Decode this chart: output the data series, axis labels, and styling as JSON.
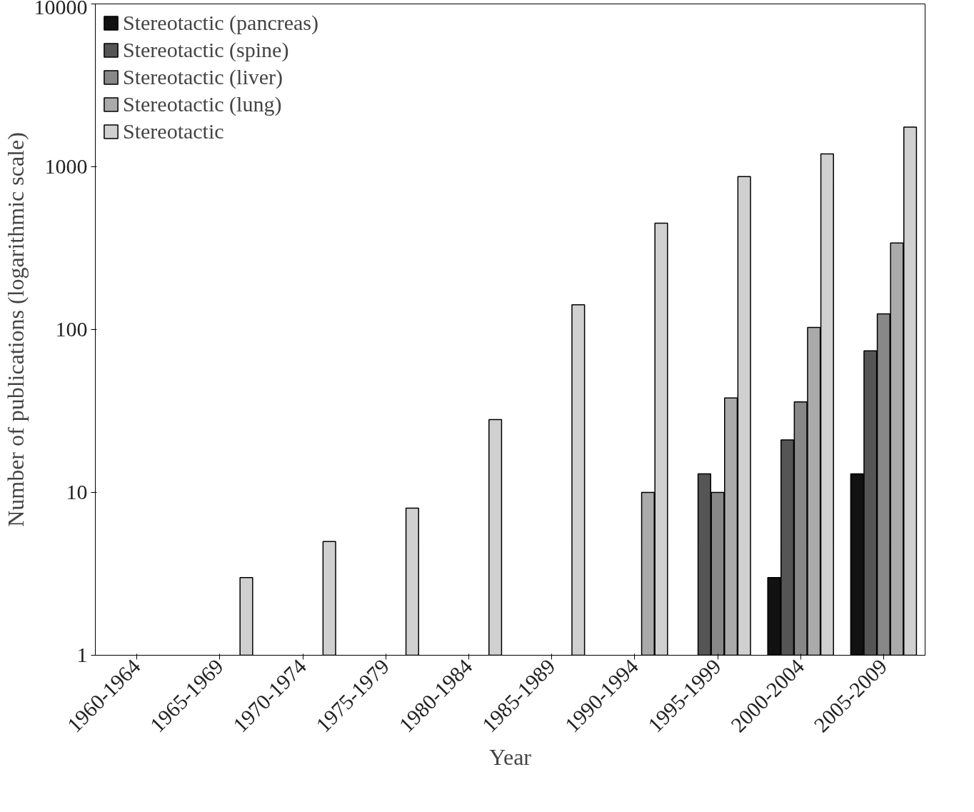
{
  "chart_data": {
    "type": "bar",
    "xlabel": "Year",
    "ylabel": "Number of publications (logarithmic scale)",
    "categories": [
      "1960-1964",
      "1965-1969",
      "1970-1974",
      "1975-1979",
      "1980-1984",
      "1985-1989",
      "1990-1994",
      "1995-1999",
      "2000-2004",
      "2005-2009"
    ],
    "series": [
      {
        "name": "Stereotactic (pancreas)",
        "color": "#111111",
        "values": [
          null,
          null,
          null,
          null,
          null,
          null,
          null,
          null,
          3,
          13
        ]
      },
      {
        "name": "Stereotactic (spine)",
        "color": "#555555",
        "values": [
          null,
          null,
          null,
          null,
          null,
          null,
          null,
          13,
          21,
          74
        ]
      },
      {
        "name": "Stereotactic (liver)",
        "color": "#888888",
        "values": [
          null,
          null,
          null,
          null,
          null,
          null,
          null,
          10,
          36,
          125
        ]
      },
      {
        "name": "Stereotactic (lung)",
        "color": "#aaaaaa",
        "values": [
          null,
          null,
          null,
          null,
          null,
          null,
          10,
          38,
          103,
          340
        ]
      },
      {
        "name": "Stereotactic",
        "color": "#d0d0d0",
        "values": [
          null,
          3,
          5,
          8,
          28,
          142,
          450,
          870,
          1200,
          1750
        ]
      }
    ],
    "ylim": [
      1,
      10000
    ],
    "yticks": [
      1,
      10,
      100,
      1000,
      10000
    ],
    "log": true,
    "legend": "top left"
  }
}
